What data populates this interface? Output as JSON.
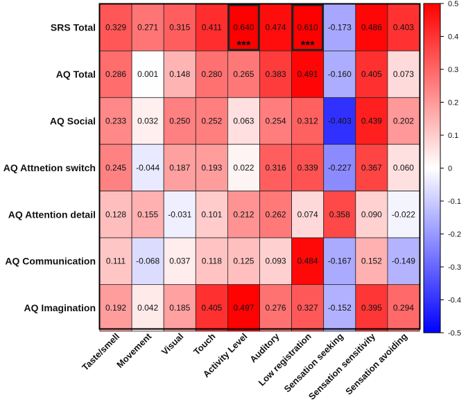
{
  "chart_data": {
    "type": "heatmap",
    "title": "",
    "rows": [
      "SRS Total",
      "AQ Total",
      "AQ Social",
      "AQ Attnetion switch",
      "AQ Attention detail",
      "AQ Communication",
      "AQ Imagination"
    ],
    "columns": [
      "Taste/smell",
      "Movement",
      "Visual",
      "Touch",
      "Activity Level",
      "Auditory",
      "Low registration",
      "Sensation seeking",
      "Sensation sensitivity",
      "Sensation avoiding"
    ],
    "values": [
      [
        0.329,
        0.271,
        0.315,
        0.411,
        0.64,
        0.474,
        0.61,
        -0.173,
        0.486,
        0.403
      ],
      [
        0.286,
        0.001,
        0.148,
        0.28,
        0.265,
        0.383,
        0.491,
        -0.16,
        0.405,
        0.073
      ],
      [
        0.233,
        0.032,
        0.25,
        0.252,
        0.063,
        0.254,
        0.312,
        -0.403,
        0.439,
        0.202
      ],
      [
        0.245,
        -0.044,
        0.187,
        0.193,
        0.022,
        0.316,
        0.339,
        -0.227,
        0.367,
        0.06
      ],
      [
        0.128,
        0.155,
        -0.031,
        0.101,
        0.212,
        0.262,
        0.074,
        0.358,
        0.09,
        -0.022
      ],
      [
        0.111,
        -0.068,
        0.037,
        0.118,
        0.125,
        0.093,
        0.484,
        -0.167,
        0.152,
        -0.149
      ],
      [
        0.192,
        0.042,
        0.185,
        0.405,
        0.497,
        0.276,
        0.327,
        -0.152,
        0.395,
        0.294
      ]
    ],
    "value_labels": [
      [
        "0.329",
        "0.271",
        "0.315",
        "0.411",
        "0.640",
        "0.474",
        "0.610",
        "-0.173",
        "0.486",
        "0.403"
      ],
      [
        "0.286",
        "0.001",
        "0.148",
        "0.280",
        "0.265",
        "0.383",
        "0.491",
        "-0.160",
        "0.405",
        "0.073"
      ],
      [
        "0.233",
        "0.032",
        "0.250",
        "0.252",
        "0.063",
        "0.254",
        "0.312",
        "-0.403",
        "0.439",
        "0.202"
      ],
      [
        "0.245",
        "-0.044",
        "0.187",
        "0.193",
        "0.022",
        "0.316",
        "0.339",
        "-0.227",
        "0.367",
        "0.060"
      ],
      [
        "0.128",
        "0.155",
        "-0.031",
        "0.101",
        "0.212",
        "0.262",
        "0.074",
        "0.358",
        "0.090",
        "-0.022"
      ],
      [
        "0.111",
        "-0.068",
        "0.037",
        "0.118",
        "0.125",
        "0.093",
        "0.484",
        "-0.167",
        "0.152",
        "-0.149"
      ],
      [
        "0.192",
        "0.042",
        "0.185",
        "0.405",
        "0.497",
        "0.276",
        "0.327",
        "-0.152",
        "0.395",
        "0.294"
      ]
    ],
    "highlighted_cells": [
      {
        "row": 0,
        "col": 4,
        "mark": "***"
      },
      {
        "row": 0,
        "col": 6,
        "mark": "***"
      }
    ],
    "colorbar": {
      "min": -0.5,
      "max": 0.5,
      "ticks": [
        0.5,
        0.4,
        0.3,
        0.2,
        0.1,
        0,
        -0.1,
        -0.2,
        -0.3,
        -0.4,
        -0.5
      ],
      "tick_labels": [
        "0.5",
        "0.4",
        "0.3",
        "0.2",
        "0.1",
        "0",
        "-0.1",
        "-0.2",
        "-0.3",
        "-0.4",
        "-0.5"
      ],
      "low_color": "#0000ff",
      "mid_color": "#ffffff",
      "high_color": "#ff0000"
    }
  }
}
